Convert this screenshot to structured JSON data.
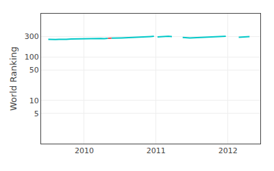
{
  "chart_data": {
    "type": "line",
    "ylabel": "World Ranking",
    "log": "y",
    "grid": true,
    "xlim": [
      2009.4,
      2012.45
    ],
    "xticks": [
      2010,
      2011,
      2012
    ],
    "ylim": [
      1,
      1000
    ],
    "yticks": [
      5,
      10,
      50,
      100,
      300
    ],
    "series": [
      {
        "color": "#00c8c8",
        "x": [
          2009.5,
          2009.55,
          2009.6,
          2009.65,
          2009.7,
          2009.75,
          2009.82,
          2009.87,
          2009.92,
          2009.97,
          2010.02,
          2010.08,
          2010.13,
          2010.18,
          2010.23,
          2010.28,
          2010.33
        ],
        "values": [
          255,
          252,
          254,
          256,
          253,
          255,
          260,
          261,
          262,
          264,
          266,
          268,
          270,
          272,
          268,
          265,
          270
        ]
      },
      {
        "color": "#00c8c8",
        "x": [
          2010.38,
          2010.42,
          2010.47,
          2010.52,
          2010.57,
          2010.62,
          2010.67,
          2010.72,
          2010.77,
          2010.82,
          2010.87,
          2010.92,
          2010.97
        ],
        "values": [
          272,
          275,
          274,
          276,
          278,
          280,
          278,
          282,
          285,
          288,
          292,
          296,
          300
        ]
      },
      {
        "color": "#00c8c8",
        "x": [
          2011.02,
          2011.07,
          2011.12,
          2011.17,
          2011.22
        ],
        "values": [
          290,
          295,
          298,
          300,
          297
        ]
      },
      {
        "color": "#00c8c8",
        "x": [
          2011.37,
          2011.42,
          2011.47,
          2011.52,
          2011.57,
          2011.62,
          2011.67,
          2011.72,
          2011.77,
          2011.82,
          2011.87,
          2011.92,
          2011.97
        ],
        "values": [
          282,
          278,
          275,
          278,
          280,
          282,
          283,
          285,
          287,
          290,
          293,
          296,
          300
        ]
      },
      {
        "color": "#00c8c8",
        "x": [
          2012.15,
          2012.2,
          2012.25,
          2012.3
        ],
        "values": [
          285,
          288,
          292,
          295
        ]
      },
      {
        "color": "#e05050",
        "x": [
          2010.33,
          2010.38
        ],
        "values": [
          270,
          272
        ]
      }
    ]
  }
}
